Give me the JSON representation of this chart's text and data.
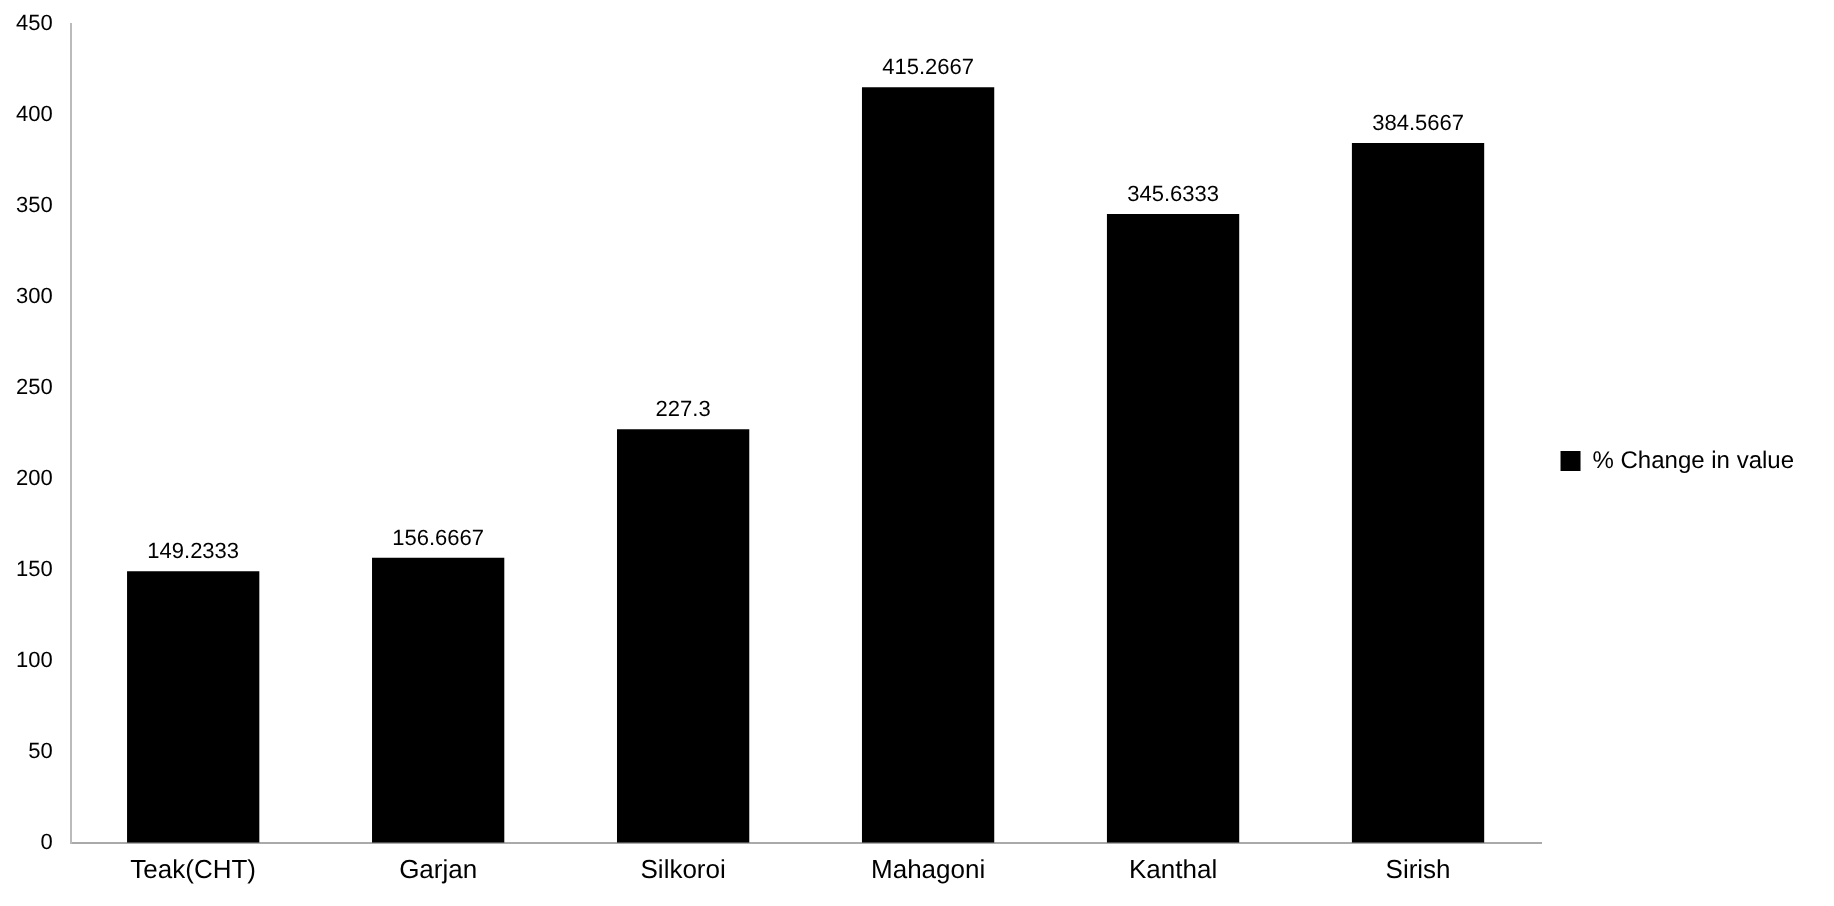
{
  "chart_data": {
    "type": "bar",
    "categories": [
      "Teak(CHT)",
      "Garjan",
      "Silkoroi",
      "Mahagoni",
      "Kanthal",
      "Sirish"
    ],
    "series": [
      {
        "name": "% Change in value",
        "color": "#000000",
        "values": [
          149.2333,
          156.6667,
          227.3,
          415.2667,
          345.6333,
          384.5667
        ]
      }
    ],
    "ylim": [
      0,
      450
    ],
    "yticks": [
      0,
      50,
      100,
      150,
      200,
      250,
      300,
      350,
      400,
      450
    ],
    "grid": false,
    "legend": "right",
    "data_labels": true
  }
}
